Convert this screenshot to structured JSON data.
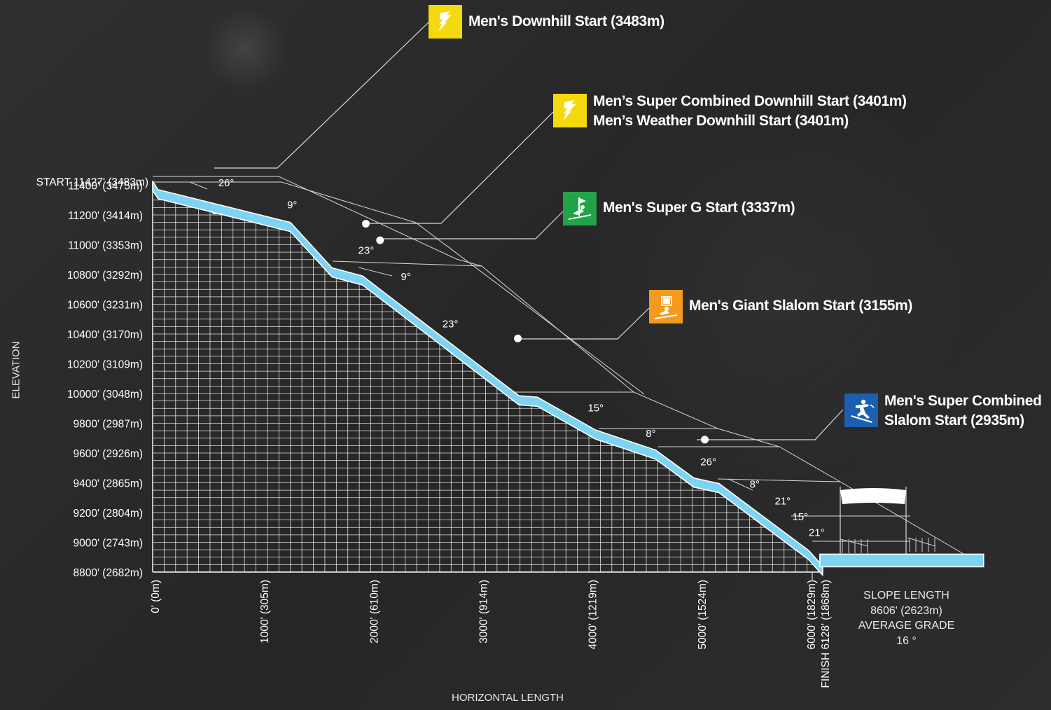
{
  "chart_data": {
    "type": "line",
    "xlabel": "HORIZONTAL LENGTH",
    "ylabel": "ELEVATION",
    "xlim": [
      0,
      7600
    ],
    "ylim": [
      8800,
      11430
    ],
    "start_label": "START 11427' (3483m)",
    "x_tick_labels": [
      {
        "x": 0,
        "label": "0' (0m)"
      },
      {
        "x": 1000,
        "label": "1000' (305m)"
      },
      {
        "x": 2000,
        "label": "2000' (610m)"
      },
      {
        "x": 3000,
        "label": "3000' (914m)"
      },
      {
        "x": 4000,
        "label": "4000' (1219m)"
      },
      {
        "x": 5000,
        "label": "5000' (1524m)"
      },
      {
        "x": 6000,
        "label": "6000' (1829m)"
      },
      {
        "x": 6128,
        "label": "FINISH 6128' (1868m)"
      }
    ],
    "y_tick_labels": [
      {
        "y": 11400,
        "label": "11400' (3475m)"
      },
      {
        "y": 11200,
        "label": "11200' (3414m)"
      },
      {
        "y": 11000,
        "label": "11000' (3353m)"
      },
      {
        "y": 10800,
        "label": "10800' (3292m)"
      },
      {
        "y": 10600,
        "label": "10600' (3231m)"
      },
      {
        "y": 10400,
        "label": "10400' (3170m)"
      },
      {
        "y": 10200,
        "label": "10200' (3109m)"
      },
      {
        "y": 10000,
        "label": "10000' (3048m)"
      },
      {
        "y": 9800,
        "label": "9800' (2987m)"
      },
      {
        "y": 9600,
        "label": "9600' (2926m)"
      },
      {
        "y": 9400,
        "label": "9400' (2865m)"
      },
      {
        "y": 9200,
        "label": "9200' (2804m)"
      },
      {
        "y": 9000,
        "label": "9000' (2743m)"
      },
      {
        "y": 8800,
        "label": "8800' (2682m)"
      }
    ],
    "profile": [
      {
        "x": 0,
        "y": 11427
      },
      {
        "x": 50,
        "y": 11370
      },
      {
        "x": 1260,
        "y": 11150
      },
      {
        "x": 1640,
        "y": 10845
      },
      {
        "x": 1920,
        "y": 10790
      },
      {
        "x": 3350,
        "y": 9985
      },
      {
        "x": 3520,
        "y": 9975
      },
      {
        "x": 4050,
        "y": 9755
      },
      {
        "x": 4600,
        "y": 9620
      },
      {
        "x": 4950,
        "y": 9432
      },
      {
        "x": 5180,
        "y": 9395
      },
      {
        "x": 6000,
        "y": 8945
      },
      {
        "x": 6128,
        "y": 8840
      }
    ],
    "finish_area": {
      "x_start": 6128,
      "x_end": 7600,
      "y": 8845
    },
    "segment_angles": [
      {
        "label": "26°",
        "x": 600,
        "y": 11394
      },
      {
        "label": "9°",
        "x": 1230,
        "y": 11245
      },
      {
        "label": "23°",
        "x": 1880,
        "y": 10940
      },
      {
        "label": "9°",
        "x": 2270,
        "y": 10763
      },
      {
        "label": "23°",
        "x": 2650,
        "y": 10445
      },
      {
        "label": "15°",
        "x": 3980,
        "y": 9880
      },
      {
        "label": "8°",
        "x": 4510,
        "y": 9708
      },
      {
        "label": "26°",
        "x": 5010,
        "y": 9518
      },
      {
        "label": "8°",
        "x": 5460,
        "y": 9368
      },
      {
        "label": "21°",
        "x": 5690,
        "y": 9253
      },
      {
        "label": "15°",
        "x": 5850,
        "y": 9148
      },
      {
        "label": "21°",
        "x": 6000,
        "y": 9043
      }
    ],
    "start_markers": [
      {
        "name": "Men's Downhill Start (3483m)",
        "x": 570,
        "y": 11230
      },
      {
        "name": "Men’s Super Combined Downhill Start (3401m)",
        "x": 1950,
        "y": 11141
      },
      {
        "name": "Men's Super G Start (3337m)",
        "x": 2080,
        "y": 11030
      },
      {
        "name": "Men's Giant Slalom Start (3155m)",
        "x": 3340,
        "y": 10370
      },
      {
        "name": "Men's Super Combined Slalom Start (2935m)",
        "x": 5050,
        "y": 9690
      }
    ]
  },
  "annotations": [
    {
      "id": "downhill",
      "lines": [
        "Men's Downhill Start (3483m)"
      ],
      "color": "#f4d90f",
      "icon": "downhill-icon"
    },
    {
      "id": "super-combined-downhill",
      "lines": [
        "Men’s Super Combined Downhill Start (3401m)",
        "Men’s Weather Downhill Start (3401m)"
      ],
      "color": "#f4d90f",
      "icon": "downhill-icon"
    },
    {
      "id": "super-g",
      "lines": [
        "Men's Super G Start (3337m)"
      ],
      "color": "#22a34a",
      "icon": "super-g-icon"
    },
    {
      "id": "giant-slalom",
      "lines": [
        "Men's Giant Slalom Start (3155m)"
      ],
      "color": "#f39a1f",
      "icon": "giant-slalom-icon"
    },
    {
      "id": "super-combined-slalom",
      "lines": [
        "Men's Super Combined",
        "Slalom Start (2935m)"
      ],
      "color": "#1c5fb0",
      "icon": "slalom-skier-icon"
    }
  ],
  "summary": {
    "slope_length_label": "SLOPE LENGTH",
    "slope_length_value": "8606' (2623m)",
    "average_grade_label": "AVERAGE GRADE",
    "average_grade_value": "16 °"
  },
  "colors": {
    "profile_fill": "#7dd3f2",
    "grid": "#ffffff",
    "text": "#ffffff"
  }
}
